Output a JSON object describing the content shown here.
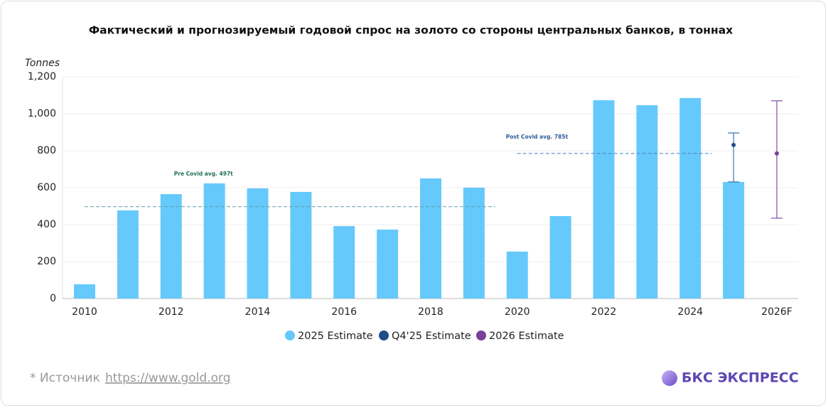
{
  "chart_data": {
    "type": "bar",
    "title": "Фактический и прогнозируемый годовой спрос на золото со стороны центральных банков, в тоннах",
    "y_label": "Tonnes",
    "categories": [
      "2010",
      null,
      "2012",
      null,
      "2014",
      null,
      "2016",
      null,
      "2018",
      null,
      "2020",
      null,
      "2022",
      null,
      "2024",
      null,
      "2026F"
    ],
    "series": [
      {
        "name": "2025 Estimate",
        "type": "bar",
        "color": "#66c9fc",
        "values": [
          77,
          477,
          565,
          623,
          596,
          577,
          392,
          373,
          650,
          600,
          254,
          446,
          1073,
          1046,
          1085,
          631,
          null
        ]
      },
      {
        "name": "Q4'25 Estimate",
        "type": "point",
        "color": "#1f4f86",
        "whisker_color": "#4a82b0",
        "values": [
          null,
          null,
          null,
          null,
          null,
          null,
          null,
          null,
          null,
          null,
          null,
          null,
          null,
          null,
          null,
          831,
          null
        ],
        "low": [
          null,
          null,
          null,
          null,
          null,
          null,
          null,
          null,
          null,
          null,
          null,
          null,
          null,
          null,
          null,
          631,
          null
        ],
        "high": [
          null,
          null,
          null,
          null,
          null,
          null,
          null,
          null,
          null,
          null,
          null,
          null,
          null,
          null,
          null,
          896,
          null
        ]
      },
      {
        "name": "2026 Estimate",
        "type": "point",
        "color": "#7a3f98",
        "whisker_color": "#8a5aaa",
        "values": [
          null,
          null,
          null,
          null,
          null,
          null,
          null,
          null,
          null,
          null,
          null,
          null,
          null,
          null,
          null,
          null,
          785
        ],
        "low": [
          null,
          null,
          null,
          null,
          null,
          null,
          null,
          null,
          null,
          null,
          null,
          null,
          null,
          null,
          null,
          null,
          435
        ],
        "high": [
          null,
          null,
          null,
          null,
          null,
          null,
          null,
          null,
          null,
          null,
          null,
          null,
          null,
          null,
          null,
          null,
          1070
        ]
      }
    ],
    "reference_lines": [
      {
        "label": "Pre Covid avg. 497t",
        "value": 497,
        "color": "#5e9fa6",
        "label_color": "#1e6f55"
      },
      {
        "label": "Post Covid avg. 785t",
        "value": 785,
        "color": "#4b80bf",
        "label_color": "#2e5c97"
      }
    ],
    "ylim": [
      0,
      1200
    ],
    "yticks": [
      0,
      200,
      400,
      600,
      800,
      {
        "value": 1000,
        "label": "1,000"
      },
      {
        "value": 1200,
        "label": "1,200"
      }
    ],
    "grid": true,
    "legend": "bottom"
  },
  "source_prefix": "*  Источник",
  "source_link": "https://www.gold.org",
  "brand": "БКС ЭКСПРЕСС"
}
